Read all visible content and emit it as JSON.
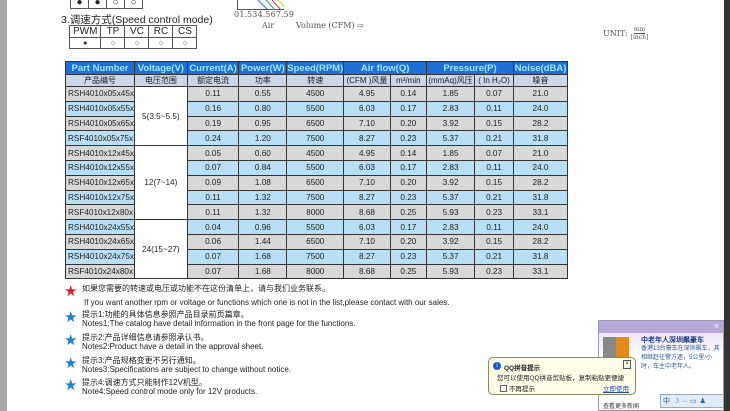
{
  "top_row": {
    "cells": [
      "●",
      "●",
      "○",
      "○"
    ]
  },
  "chart_fragment": {
    "ylabel": "Air",
    "xlabel": "Volume (CFM)",
    "ticks": [
      "0",
      "1.5",
      "3",
      "4.5",
      "6",
      "7.5",
      "9"
    ]
  },
  "unit_label": "UNIT:",
  "unit_num": "mm",
  "unit_den": "[inch]",
  "speed_control": {
    "title": "3.调速方式(Speed control mode)",
    "modes": [
      "PWM",
      "TP",
      "VC",
      "RC",
      "CS"
    ],
    "values": [
      "●",
      "○",
      "○",
      "○",
      "○"
    ]
  },
  "table": {
    "headers": [
      "Part Number",
      "Voltage(V)",
      "Current(A)",
      "Power(W)",
      "Speed(RPM)",
      "Air flow(Q)",
      "Pressure(P)",
      "Noise(dBA)"
    ],
    "subheaders": [
      "产品编号",
      "电压范围",
      "额定电流",
      "功率",
      "转速",
      "(CFM )风量",
      "m³/min",
      "(mmAq)风压",
      "( In H₂O)",
      "噪音"
    ],
    "voltage_groups": [
      "5(3.5~5.5)",
      "12(7~14)",
      "24(15~27)"
    ],
    "rows": [
      [
        "RSH4010x05x45x",
        "0.11",
        "0.55",
        "4500",
        "4.95",
        "0.14",
        "1.85",
        "0.07",
        "21.0"
      ],
      [
        "RSH4010x05x55x",
        "0.16",
        "0.80",
        "5500",
        "6.03",
        "0.17",
        "2.83",
        "0.11",
        "24.0"
      ],
      [
        "RSH4010x05x65x",
        "0.19",
        "0.95",
        "6500",
        "7.10",
        "0.20",
        "3.92",
        "0.15",
        "28.2"
      ],
      [
        "RSF4010x05x75x",
        "0.24",
        "1.20",
        "7500",
        "8.27",
        "0.23",
        "5.37",
        "0.21",
        "31.8"
      ],
      [
        "RSH4010x12x45x",
        "0.05",
        "0.60",
        "4500",
        "4.95",
        "0.14",
        "1.85",
        "0.07",
        "21.0"
      ],
      [
        "RSH4010x12x55x",
        "0.07",
        "0.84",
        "5500",
        "6.03",
        "0.17",
        "2.83",
        "0.11",
        "24.0"
      ],
      [
        "RSH4010x12x65x",
        "0.09",
        "1.08",
        "6500",
        "7.10",
        "0.20",
        "3.92",
        "0.15",
        "28.2"
      ],
      [
        "RSH4010x12x75x",
        "0.11",
        "1.32",
        "7500",
        "8.27",
        "0.23",
        "5.37",
        "0.21",
        "31.8"
      ],
      [
        "RSF4010x12x80x",
        "0.11",
        "1.32",
        "8000",
        "8.68",
        "0.25",
        "5.93",
        "0.23",
        "33.1"
      ],
      [
        "RSH4010x24x55x",
        "0.04",
        "0.96",
        "5500",
        "6.03",
        "0.17",
        "2.83",
        "0.11",
        "24.0"
      ],
      [
        "RSH4010x24x65x",
        "0.06",
        "1.44",
        "6500",
        "7.10",
        "0.20",
        "3.92",
        "0.15",
        "28.2"
      ],
      [
        "RSH4010x24x75x",
        "0.07",
        "1.68",
        "7500",
        "8.27",
        "0.23",
        "5.37",
        "0.21",
        "31.8"
      ],
      [
        "RSF4010x24x80x",
        "0.07",
        "1.68",
        "8000",
        "8.68",
        "0.25",
        "5.93",
        "0.23",
        "33.1"
      ]
    ]
  },
  "notes": [
    {
      "cn": "如果您需要的转速或电压或功能不在这份清单上，请与我们业务联系。",
      "en": "If you want another rpm or voltage or functions which one is not in the list,please contact with our sales.",
      "star": "#e02020"
    },
    {
      "cn": "提示1:功能的具体信息参照产品目录前页篇章。",
      "en": "Notes1:The catalog have detail information in the front page for the functions.",
      "star": "#1a7fd0"
    },
    {
      "cn": "提示2:产品详细信息请参照承认书。",
      "en": "Notes2:Product have a detail in the approval sheet.",
      "star": "#1a7fd0"
    },
    {
      "cn": "提示3:产品规格变更不另行通知。",
      "en": "Notes3:Specifications are subject to change without notice.",
      "star": "#1a7fd0"
    },
    {
      "cn": "提示4:调速方式只能制作12V机型。",
      "en": "Note4:Speed control mode only for 12V products.",
      "star": "#1a7fd0"
    }
  ],
  "news_popup": {
    "headline": "中老年人深圳飙豪车",
    "body": "香港13台豪车在深圳飙车，其相继赶往警方逐，5公里/小时，车主中老年人。",
    "more": "查看更多新闻"
  },
  "tooltip": {
    "title": "QQ拼音提示",
    "body": "您可以使用QQ拼音剪贴板，复制粘贴更便捷",
    "checkbox": "不再提示",
    "link": "立即使用",
    "close": "×"
  },
  "tray": {
    "items": [
      "中",
      "☽",
      "··",
      "▭",
      "♟"
    ]
  }
}
